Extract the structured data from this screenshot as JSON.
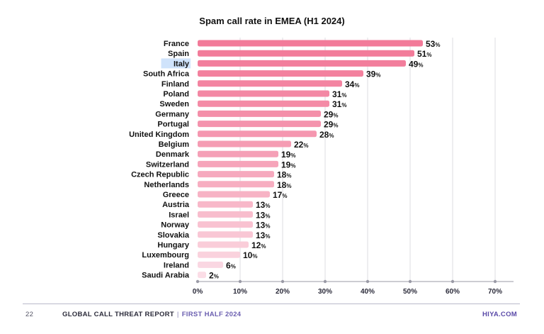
{
  "chart_data": {
    "type": "bar",
    "orientation": "horizontal",
    "title": "Spam call rate in EMEA (H1 2024)",
    "categories": [
      "France",
      "Spain",
      "Italy",
      "South Africa",
      "Finland",
      "Poland",
      "Sweden",
      "Germany",
      "Portugal",
      "United Kingdom",
      "Belgium",
      "Denmark",
      "Switzerland",
      "Czech Republic",
      "Netherlands",
      "Greece",
      "Austria",
      "Israel",
      "Norway",
      "Slovakia",
      "Hungary",
      "Luxembourg",
      "Ireland",
      "Saudi Arabia"
    ],
    "values": [
      53,
      51,
      49,
      39,
      34,
      31,
      31,
      29,
      29,
      28,
      22,
      19,
      19,
      18,
      18,
      17,
      13,
      13,
      13,
      13,
      12,
      10,
      6,
      2
    ],
    "value_suffix": "%",
    "highlighted_category": "Italy",
    "xlim": [
      0,
      70
    ],
    "xticks": [
      "0%",
      "10%",
      "20%",
      "30%",
      "40%",
      "50%",
      "60%",
      "70%"
    ],
    "grid": true,
    "colors": {
      "bar_strong": "#f27a99",
      "bar_light": "#fbdde6",
      "grid": "#dcdce2",
      "axis": "#9a9aa6",
      "highlight": "#cfe3fb"
    }
  },
  "footer": {
    "page_number": "22",
    "report_title": "GLOBAL CALL THREAT REPORT",
    "separator": "|",
    "period": "FIRST HALF 2024",
    "brand": "HIYA.COM"
  }
}
